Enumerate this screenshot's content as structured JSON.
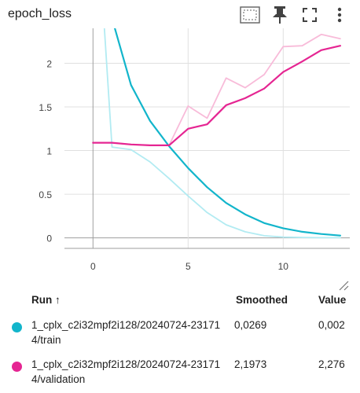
{
  "card": {
    "title": "epoch_loss"
  },
  "toolbar": {
    "icons": [
      "fit-domain-icon",
      "pin-icon",
      "fullscreen-icon",
      "more-vert-icon"
    ]
  },
  "chart_data": {
    "type": "line",
    "xlim": [
      -1.5,
      13.5
    ],
    "ylim": [
      -0.12,
      2.4
    ],
    "x_ticks": [
      0,
      5,
      10
    ],
    "y_ticks": [
      0,
      0.5,
      1,
      1.5,
      2
    ],
    "x_tick_labels": [
      "0",
      "5",
      "10"
    ],
    "y_tick_labels": [
      "0",
      "0.5",
      "1",
      "1.5",
      "2"
    ],
    "grid": true,
    "series": [
      {
        "name": "1_cplx_c2i32mpf2i128/20240724-231714/train",
        "role": "raw",
        "color": "#b2ebf2",
        "x": [
          0.6,
          1,
          2,
          3,
          4,
          5,
          6,
          7,
          8,
          9,
          10,
          11,
          12,
          13
        ],
        "y": [
          2.4,
          1.04,
          1.01,
          0.87,
          0.68,
          0.48,
          0.29,
          0.15,
          0.07,
          0.025,
          0.01,
          0.005,
          0.002,
          0.002
        ]
      },
      {
        "name": "1_cplx_c2i32mpf2i128/20240724-231714/train",
        "role": "smoothed",
        "color": "#12b5cb",
        "x": [
          1.15,
          2,
          3,
          4,
          5,
          6,
          7,
          8,
          9,
          10,
          11,
          12,
          13
        ],
        "y": [
          2.4,
          1.75,
          1.34,
          1.05,
          0.8,
          0.58,
          0.4,
          0.27,
          0.17,
          0.11,
          0.07,
          0.045,
          0.027
        ]
      },
      {
        "name": "1_cplx_c2i32mpf2i128/20240724-231714/validation",
        "role": "raw",
        "color": "#f8bbd9",
        "x": [
          0,
          1,
          2,
          3,
          4,
          5,
          6,
          7,
          8,
          9,
          10,
          11,
          12,
          13
        ],
        "y": [
          1.09,
          1.09,
          1.07,
          1.06,
          1.06,
          1.51,
          1.37,
          1.83,
          1.72,
          1.87,
          2.19,
          2.2,
          2.33,
          2.28
        ]
      },
      {
        "name": "1_cplx_c2i32mpf2i128/20240724-231714/validation",
        "role": "smoothed",
        "color": "#e52592",
        "x": [
          0,
          1,
          2,
          3,
          4,
          5,
          6,
          7,
          8,
          9,
          10,
          11,
          12,
          13
        ],
        "y": [
          1.09,
          1.09,
          1.07,
          1.06,
          1.06,
          1.25,
          1.3,
          1.52,
          1.6,
          1.71,
          1.9,
          2.02,
          2.15,
          2.2
        ]
      }
    ]
  },
  "table": {
    "headers": {
      "run": "Run ↑",
      "smoothed": "Smoothed",
      "value": "Value"
    },
    "rows": [
      {
        "color": "#12b5cb",
        "run": "1_cplx_c2i32mpf2i128/20240724-231714/train",
        "smoothed": "0,0269",
        "value": "0,002"
      },
      {
        "color": "#e52592",
        "run": "1_cplx_c2i32mpf2i128/20240724-231714/validation",
        "smoothed": "2,1973",
        "value": "2,276"
      }
    ]
  }
}
